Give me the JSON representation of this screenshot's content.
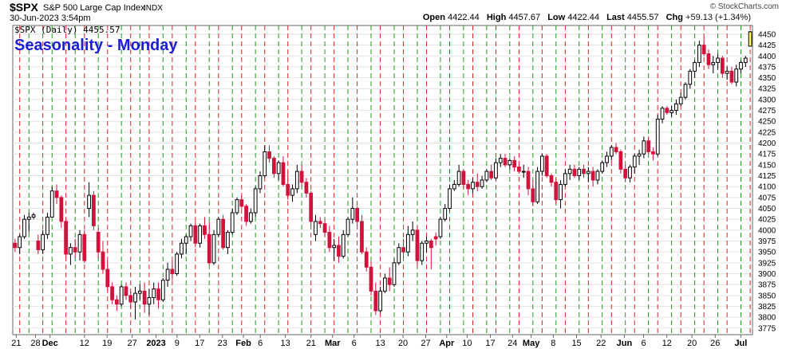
{
  "header": {
    "symbol": "$SPX",
    "name": "S&P 500 Large Cap Index",
    "exchange": "INDX",
    "brand": "© StockCharts.com",
    "date": "30-Jun-2023 3:54pm",
    "open_label": "Open",
    "open": "4422.44",
    "high_label": "High",
    "high": "4457.67",
    "low_label": "Low",
    "low": "4422.44",
    "last_label": "Last",
    "last": "4455.57",
    "chg_label": "Chg",
    "chg": "+59.13 (+1.34%)"
  },
  "chart_data": {
    "type": "candlestick",
    "title": "Seasonality - Monday",
    "legend": "$SPX (Daily) 4455.57",
    "y_ticks": [
      3775,
      3800,
      3825,
      3850,
      3875,
      3900,
      3925,
      3950,
      3975,
      4000,
      4025,
      4050,
      4075,
      4100,
      4125,
      4150,
      4175,
      4200,
      4225,
      4250,
      4275,
      4300,
      4325,
      4350,
      4375,
      4400,
      4425,
      4450
    ],
    "ylim": [
      3760,
      4470
    ],
    "x_labels": [
      "21",
      "28",
      "Dec",
      "12",
      "19",
      "27",
      "2023",
      "9",
      "17",
      "23",
      "Feb",
      "6",
      "13",
      "21",
      "Mar",
      "6",
      "13",
      "20",
      "27",
      "Apr",
      "10",
      "17",
      "24",
      "May",
      "8",
      "15",
      "22",
      "Jun",
      "6",
      "12",
      "20",
      "26",
      "Jul"
    ],
    "bold_labels": [
      "Dec",
      "2023",
      "Feb",
      "Mar",
      "Apr",
      "May",
      "Jun",
      "Jul"
    ],
    "grid": true,
    "up_color": "#ffffff",
    "down_color": "#d3123c",
    "last_bar_color": "#ffff66",
    "monday_red_line": "#d92424",
    "green_line": "#1e9a1e",
    "bars": [
      [
        3970,
        3980,
        3950,
        3960
      ],
      [
        3960,
        3990,
        3945,
        3985
      ],
      [
        3985,
        4035,
        3980,
        4025
      ],
      [
        4025,
        4040,
        3995,
        4030
      ],
      [
        4030,
        4040,
        4025,
        4035
      ],
      [
        3975,
        3990,
        3945,
        3955
      ],
      [
        3955,
        4000,
        3945,
        3990
      ],
      [
        3990,
        4040,
        3980,
        4030
      ],
      [
        4030,
        4100,
        4030,
        4090
      ],
      [
        4090,
        4105,
        4060,
        4075
      ],
      [
        4075,
        4080,
        4005,
        4020
      ],
      [
        4020,
        4025,
        3935,
        3945
      ],
      [
        3945,
        3970,
        3920,
        3960
      ],
      [
        3960,
        3980,
        3935,
        3950
      ],
      [
        3950,
        4000,
        3930,
        3990
      ],
      [
        3990,
        4000,
        3925,
        3930
      ],
      [
        4050,
        4110,
        4030,
        4080
      ],
      [
        4080,
        4090,
        4000,
        4010
      ],
      [
        3995,
        4005,
        3935,
        3950
      ],
      [
        3950,
        3975,
        3900,
        3910
      ],
      [
        3910,
        3930,
        3860,
        3870
      ],
      [
        3870,
        3880,
        3830,
        3840
      ],
      [
        3840,
        3850,
        3815,
        3830
      ],
      [
        3830,
        3875,
        3825,
        3870
      ],
      [
        3870,
        3880,
        3840,
        3850
      ],
      [
        3850,
        3860,
        3820,
        3835
      ],
      [
        3835,
        3870,
        3795,
        3855
      ],
      [
        3855,
        3875,
        3840,
        3860
      ],
      [
        3860,
        3880,
        3810,
        3830
      ],
      [
        3830,
        3865,
        3805,
        3845
      ],
      [
        3845,
        3880,
        3830,
        3865
      ],
      [
        3865,
        3880,
        3820,
        3840
      ],
      [
        3840,
        3890,
        3835,
        3885
      ],
      [
        3885,
        3925,
        3870,
        3910
      ],
      [
        3910,
        3930,
        3885,
        3900
      ],
      [
        3900,
        3950,
        3895,
        3945
      ],
      [
        3945,
        3980,
        3935,
        3970
      ],
      [
        3970,
        3990,
        3945,
        3985
      ],
      [
        3985,
        4015,
        3975,
        4010
      ],
      [
        4010,
        4020,
        3960,
        3970
      ],
      [
        3970,
        4015,
        3960,
        4010
      ],
      [
        4010,
        4030,
        3980,
        3990
      ],
      [
        3990,
        4020,
        3920,
        3925
      ],
      [
        3925,
        4000,
        3920,
        3990
      ],
      [
        3990,
        4030,
        3985,
        4025
      ],
      [
        4025,
        4035,
        3955,
        3960
      ],
      [
        3960,
        4000,
        3945,
        3995
      ],
      [
        3995,
        4050,
        3990,
        4040
      ],
      [
        4040,
        4075,
        4035,
        4070
      ],
      [
        4070,
        4080,
        4050,
        4055
      ],
      [
        4055,
        4060,
        4010,
        4020
      ],
      [
        4020,
        4050,
        4015,
        4040
      ],
      [
        4040,
        4100,
        4030,
        4095
      ],
      [
        4095,
        4135,
        4085,
        4125
      ],
      [
        4125,
        4195,
        4120,
        4180
      ],
      [
        4180,
        4195,
        4155,
        4165
      ],
      [
        4165,
        4170,
        4120,
        4130
      ],
      [
        4130,
        4160,
        4115,
        4155
      ],
      [
        4155,
        4170,
        4100,
        4105
      ],
      [
        4105,
        4135,
        4070,
        4080
      ],
      [
        4080,
        4105,
        4065,
        4095
      ],
      [
        4095,
        4150,
        4085,
        4135
      ],
      [
        4135,
        4150,
        4100,
        4110
      ],
      [
        4110,
        4120,
        4075,
        4085
      ],
      [
        4085,
        4090,
        4010,
        4020
      ],
      [
        3990,
        4035,
        3975,
        4020
      ],
      [
        4020,
        4030,
        4005,
        4015
      ],
      [
        4015,
        4025,
        3985,
        3995
      ],
      [
        3995,
        4010,
        3950,
        3960
      ],
      [
        3960,
        3980,
        3930,
        3965
      ],
      [
        3965,
        3985,
        3925,
        3940
      ],
      [
        3940,
        4000,
        3935,
        3990
      ],
      [
        3990,
        4030,
        3985,
        4025
      ],
      [
        4025,
        4075,
        4015,
        4050
      ],
      [
        4050,
        4055,
        4010,
        4020
      ],
      [
        4020,
        4035,
        3945,
        3950
      ],
      [
        3950,
        3960,
        3905,
        3915
      ],
      [
        3915,
        3930,
        3850,
        3860
      ],
      [
        3860,
        3880,
        3805,
        3815
      ],
      [
        3815,
        3870,
        3810,
        3860
      ],
      [
        3860,
        3900,
        3855,
        3890
      ],
      [
        3890,
        3915,
        3860,
        3875
      ],
      [
        3875,
        3935,
        3870,
        3925
      ],
      [
        3925,
        3970,
        3920,
        3960
      ],
      [
        3960,
        3980,
        3935,
        3950
      ],
      [
        3950,
        4010,
        3940,
        3990
      ],
      [
        3990,
        4020,
        3975,
        4000
      ],
      [
        4000,
        4010,
        3915,
        3930
      ],
      [
        3930,
        3975,
        3920,
        3970
      ],
      [
        3970,
        3985,
        3950,
        3975
      ],
      [
        3975,
        3980,
        3910,
        3960
      ],
      [
        3985,
        3995,
        3965,
        3980
      ],
      [
        3985,
        4030,
        3980,
        4025
      ],
      [
        4025,
        4060,
        4020,
        4050
      ],
      [
        4050,
        4105,
        4045,
        4095
      ],
      [
        4095,
        4115,
        4090,
        4105
      ],
      [
        4105,
        4150,
        4100,
        4135
      ],
      [
        4135,
        4140,
        4095,
        4105
      ],
      [
        4105,
        4115,
        4080,
        4095
      ],
      [
        4095,
        4120,
        4085,
        4110
      ],
      [
        4110,
        4130,
        4090,
        4100
      ],
      [
        4100,
        4125,
        4095,
        4115
      ],
      [
        4115,
        4140,
        4110,
        4135
      ],
      [
        4135,
        4150,
        4115,
        4120
      ],
      [
        4120,
        4165,
        4115,
        4155
      ],
      [
        4155,
        4175,
        4145,
        4165
      ],
      [
        4165,
        4175,
        4145,
        4150
      ],
      [
        4150,
        4165,
        4140,
        4160
      ],
      [
        4160,
        4170,
        4135,
        4145
      ],
      [
        4145,
        4150,
        4130,
        4135
      ],
      [
        4135,
        4150,
        4120,
        4135
      ],
      [
        4135,
        4145,
        4080,
        4095
      ],
      [
        4095,
        4115,
        4055,
        4065
      ],
      [
        4065,
        4145,
        4060,
        4135
      ],
      [
        4135,
        4175,
        4125,
        4170
      ],
      [
        4170,
        4175,
        4120,
        4125
      ],
      [
        4125,
        4130,
        4100,
        4110
      ],
      [
        4110,
        4120,
        4060,
        4070
      ],
      [
        4070,
        4115,
        4050,
        4105
      ],
      [
        4105,
        4140,
        4100,
        4130
      ],
      [
        4130,
        4150,
        4115,
        4140
      ],
      [
        4140,
        4150,
        4120,
        4125
      ],
      [
        4125,
        4145,
        4115,
        4140
      ],
      [
        4140,
        4150,
        4120,
        4130
      ],
      [
        4130,
        4145,
        4110,
        4135
      ],
      [
        4135,
        4145,
        4100,
        4115
      ],
      [
        4115,
        4140,
        4105,
        4135
      ],
      [
        4135,
        4160,
        4130,
        4155
      ],
      [
        4155,
        4180,
        4145,
        4170
      ],
      [
        4170,
        4195,
        4160,
        4190
      ],
      [
        4190,
        4200,
        4175,
        4180
      ],
      [
        4180,
        4185,
        4130,
        4140
      ],
      [
        4140,
        4150,
        4110,
        4120
      ],
      [
        4120,
        4150,
        4110,
        4145
      ],
      [
        4145,
        4175,
        4130,
        4170
      ],
      [
        4170,
        4185,
        4150,
        4175
      ],
      [
        4175,
        4215,
        4165,
        4205
      ],
      [
        4205,
        4215,
        4175,
        4180
      ],
      [
        4180,
        4190,
        4160,
        4175
      ],
      [
        4175,
        4265,
        4170,
        4255
      ],
      [
        4255,
        4285,
        4245,
        4280
      ],
      [
        4280,
        4285,
        4265,
        4270
      ],
      [
        4270,
        4285,
        4260,
        4275
      ],
      [
        4275,
        4300,
        4265,
        4290
      ],
      [
        4290,
        4315,
        4285,
        4305
      ],
      [
        4305,
        4340,
        4300,
        4335
      ],
      [
        4335,
        4370,
        4325,
        4365
      ],
      [
        4365,
        4390,
        4350,
        4385
      ],
      [
        4385,
        4435,
        4375,
        4425
      ],
      [
        4425,
        4445,
        4400,
        4405
      ],
      [
        4405,
        4415,
        4370,
        4380
      ],
      [
        4380,
        4400,
        4360,
        4385
      ],
      [
        4385,
        4405,
        4370,
        4395
      ],
      [
        4395,
        4400,
        4350,
        4360
      ],
      [
        4360,
        4375,
        4345,
        4365
      ],
      [
        4365,
        4375,
        4335,
        4340
      ],
      [
        4340,
        4380,
        4330,
        4370
      ],
      [
        4370,
        4390,
        4360,
        4385
      ],
      [
        4385,
        4400,
        4375,
        4395
      ],
      [
        4422.44,
        4457.67,
        4422.44,
        4455.57
      ]
    ],
    "red_line_bars": [
      1,
      6,
      11,
      15,
      20,
      25,
      29,
      34,
      39,
      44,
      49,
      54,
      59,
      64,
      69,
      74,
      79,
      84,
      89,
      94,
      99,
      104,
      109,
      114,
      119,
      124,
      129,
      134,
      139,
      144,
      149,
      154,
      159
    ],
    "green_line_bars": [
      3,
      8,
      13,
      18,
      23,
      27,
      32,
      37,
      42,
      47,
      52,
      57,
      62,
      67,
      72,
      77,
      82,
      87,
      92,
      97,
      102,
      107,
      112,
      117,
      122,
      127,
      132,
      137,
      142,
      147,
      152,
      157
    ]
  }
}
